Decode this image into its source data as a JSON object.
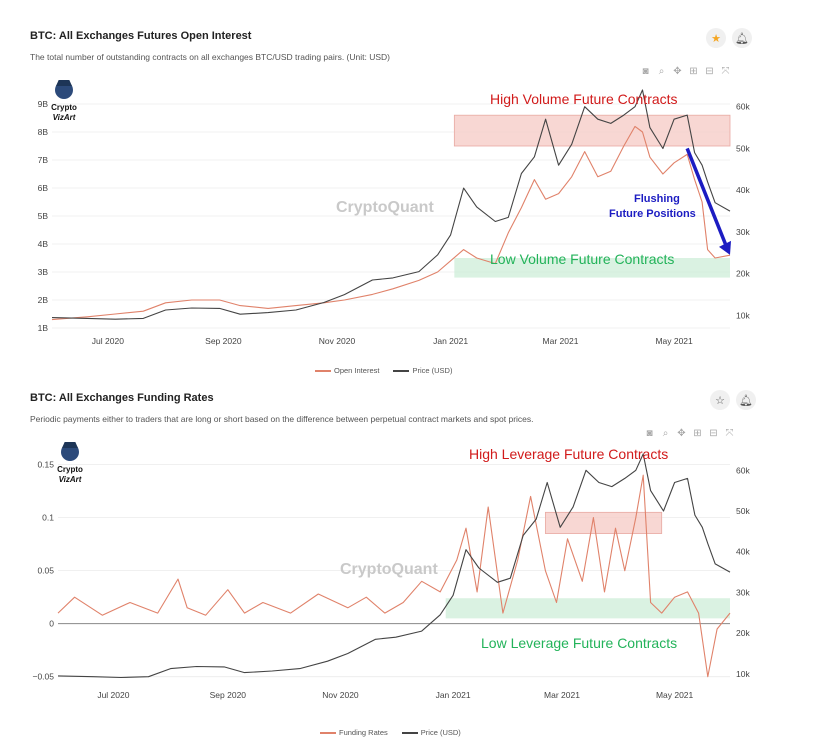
{
  "panel1": {
    "title": "BTC: All Exchanges Futures Open Interest",
    "subtitle": "The total number of outstanding contracts on all exchanges BTC/USD trading pairs. (Unit: USD)",
    "watermark": "CryptoQuant",
    "logo_text": [
      "Crypto",
      "VizArt"
    ],
    "annotations": {
      "high": "High Volume Future Contracts",
      "low": "Low Volume Future Contracts",
      "flush": [
        "Flushing",
        "Future Positions"
      ]
    }
  },
  "panel2": {
    "title": "BTC: All Exchanges Funding Rates",
    "subtitle": "Periodic payments either to traders that are long or short based on the difference between perpetual contract markets and spot prices.",
    "watermark": "CryptoQuant",
    "logo_text": [
      "Crypto",
      "VizArt"
    ],
    "annotations": {
      "high": "High Leverage Future Contracts",
      "low": "Low Leverage Future Contracts"
    }
  },
  "icons": {
    "star": "star-icon",
    "bell": "bell-icon",
    "toolbar": [
      "camera-icon",
      "zoom-icon",
      "pan-icon",
      "zoom-in-icon",
      "zoom-out-icon",
      "autoscale-icon"
    ]
  },
  "colors": {
    "open_interest": "#e0826a",
    "funding_rates": "#e0826a",
    "price": "#444444",
    "high_zone": "#f6c9c4",
    "low_zone": "#cdeed8",
    "high_text": "#d11a1a",
    "low_text": "#23b35a",
    "arrow": "#1c1cc2",
    "star_active": "#f5a623"
  },
  "chart_data": [
    {
      "type": "line",
      "title": "BTC: All Exchanges Futures Open Interest",
      "x_ticks": [
        "Jul 2020",
        "Sep 2020",
        "Nov 2020",
        "Jan 2021",
        "Mar 2021",
        "May 2021"
      ],
      "y_left_ticks": [
        "1B",
        "2B",
        "3B",
        "4B",
        "5B",
        "6B",
        "7B",
        "8B",
        "9B"
      ],
      "y_right_ticks": [
        "10k",
        "20k",
        "30k",
        "40k",
        "50k",
        "60k"
      ],
      "ylim_left": [
        1,
        9.5
      ],
      "ylim_right": [
        7000,
        64000
      ],
      "x_range": [
        "2020-06-01",
        "2021-05-31"
      ],
      "legend_position": "bottom-center",
      "series": [
        {
          "name": "Open Interest",
          "axis": "left",
          "unit": "B USD",
          "x": [
            "2020-06-01",
            "2020-06-20",
            "2020-07-05",
            "2020-07-20",
            "2020-08-01",
            "2020-08-15",
            "2020-08-30",
            "2020-09-10",
            "2020-09-25",
            "2020-10-10",
            "2020-10-25",
            "2020-11-05",
            "2020-11-20",
            "2020-12-01",
            "2020-12-15",
            "2020-12-25",
            "2021-01-01",
            "2021-01-08",
            "2021-01-15",
            "2021-01-25",
            "2021-02-01",
            "2021-02-08",
            "2021-02-15",
            "2021-02-21",
            "2021-02-28",
            "2021-03-07",
            "2021-03-14",
            "2021-03-21",
            "2021-03-28",
            "2021-04-04",
            "2021-04-10",
            "2021-04-14",
            "2021-04-18",
            "2021-04-25",
            "2021-05-01",
            "2021-05-08",
            "2021-05-12",
            "2021-05-16",
            "2021-05-19",
            "2021-05-23",
            "2021-05-31"
          ],
          "values": [
            1.3,
            1.4,
            1.5,
            1.6,
            1.9,
            2.0,
            2.0,
            1.8,
            1.7,
            1.8,
            1.9,
            2.0,
            2.2,
            2.4,
            2.7,
            3.0,
            3.4,
            3.8,
            3.5,
            3.3,
            4.4,
            5.3,
            6.3,
            5.6,
            5.8,
            6.4,
            7.3,
            6.4,
            6.6,
            7.5,
            8.2,
            8.0,
            7.1,
            6.5,
            6.9,
            7.2,
            6.3,
            5.5,
            3.8,
            3.5,
            3.6
          ]
        },
        {
          "name": "Price (USD)",
          "axis": "right",
          "unit": "USD",
          "x": [
            "2020-06-01",
            "2020-06-20",
            "2020-07-05",
            "2020-07-20",
            "2020-08-01",
            "2020-08-15",
            "2020-08-30",
            "2020-09-10",
            "2020-09-25",
            "2020-10-10",
            "2020-10-25",
            "2020-11-05",
            "2020-11-20",
            "2020-12-01",
            "2020-12-15",
            "2020-12-25",
            "2021-01-01",
            "2021-01-08",
            "2021-01-15",
            "2021-01-25",
            "2021-02-01",
            "2021-02-08",
            "2021-02-15",
            "2021-02-21",
            "2021-02-28",
            "2021-03-07",
            "2021-03-14",
            "2021-03-21",
            "2021-03-28",
            "2021-04-04",
            "2021-04-10",
            "2021-04-14",
            "2021-04-18",
            "2021-04-25",
            "2021-05-01",
            "2021-05-08",
            "2021-05-12",
            "2021-05-16",
            "2021-05-19",
            "2021-05-23",
            "2021-05-31"
          ],
          "values": [
            9500,
            9300,
            9100,
            9300,
            11300,
            11800,
            11700,
            10300,
            10700,
            11300,
            13100,
            15000,
            18500,
            19000,
            20500,
            24500,
            29300,
            40500,
            36000,
            32500,
            33500,
            44000,
            48000,
            57000,
            46000,
            51000,
            60000,
            57000,
            56000,
            58000,
            60000,
            64000,
            55000,
            50000,
            57000,
            58000,
            49000,
            46000,
            42000,
            37000,
            35000
          ]
        }
      ]
    },
    {
      "type": "line",
      "title": "BTC: All Exchanges Funding Rates",
      "x_ticks": [
        "Jul 2020",
        "Sep 2020",
        "Nov 2020",
        "Jan 2021",
        "Mar 2021",
        "May 2021"
      ],
      "y_left_ticks": [
        "−0.05",
        "0",
        "0.05",
        "0.1",
        "0.15"
      ],
      "y_right_ticks": [
        "10k",
        "20k",
        "30k",
        "40k",
        "50k",
        "60k"
      ],
      "ylim_left": [
        -0.055,
        0.16
      ],
      "ylim_right": [
        8000,
        64000
      ],
      "x_range": [
        "2020-06-01",
        "2021-05-31"
      ],
      "legend_position": "bottom-center",
      "series": [
        {
          "name": "Funding Rates",
          "axis": "left",
          "unit": "%",
          "x": [
            "2020-06-01",
            "2020-06-10",
            "2020-06-25",
            "2020-07-10",
            "2020-07-25",
            "2020-08-05",
            "2020-08-10",
            "2020-08-20",
            "2020-09-01",
            "2020-09-10",
            "2020-09-20",
            "2020-10-05",
            "2020-10-20",
            "2020-11-05",
            "2020-11-15",
            "2020-11-25",
            "2020-12-05",
            "2020-12-15",
            "2020-12-25",
            "2021-01-03",
            "2021-01-08",
            "2021-01-14",
            "2021-01-20",
            "2021-01-28",
            "2021-02-05",
            "2021-02-12",
            "2021-02-20",
            "2021-02-26",
            "2021-03-04",
            "2021-03-12",
            "2021-03-18",
            "2021-03-24",
            "2021-03-30",
            "2021-04-04",
            "2021-04-10",
            "2021-04-14",
            "2021-04-18",
            "2021-04-24",
            "2021-05-01",
            "2021-05-08",
            "2021-05-14",
            "2021-05-19",
            "2021-05-24",
            "2021-05-31"
          ],
          "values": [
            0.01,
            0.025,
            0.008,
            0.02,
            0.01,
            0.042,
            0.015,
            0.008,
            0.032,
            0.01,
            0.02,
            0.01,
            0.028,
            0.015,
            0.025,
            0.01,
            0.02,
            0.04,
            0.03,
            0.06,
            0.09,
            0.03,
            0.11,
            0.01,
            0.06,
            0.12,
            0.05,
            0.02,
            0.08,
            0.04,
            0.1,
            0.03,
            0.09,
            0.05,
            0.1,
            0.14,
            0.02,
            0.01,
            0.025,
            0.03,
            0.01,
            -0.05,
            -0.005,
            0.01
          ]
        },
        {
          "name": "Price (USD)",
          "axis": "right",
          "unit": "USD",
          "x": [
            "2020-06-01",
            "2020-06-20",
            "2020-07-05",
            "2020-07-20",
            "2020-08-01",
            "2020-08-15",
            "2020-08-30",
            "2020-09-10",
            "2020-09-25",
            "2020-10-10",
            "2020-10-25",
            "2020-11-05",
            "2020-11-20",
            "2020-12-01",
            "2020-12-15",
            "2020-12-25",
            "2021-01-01",
            "2021-01-08",
            "2021-01-15",
            "2021-01-25",
            "2021-02-01",
            "2021-02-08",
            "2021-02-15",
            "2021-02-21",
            "2021-02-28",
            "2021-03-07",
            "2021-03-14",
            "2021-03-21",
            "2021-03-28",
            "2021-04-04",
            "2021-04-10",
            "2021-04-14",
            "2021-04-18",
            "2021-04-25",
            "2021-05-01",
            "2021-05-08",
            "2021-05-12",
            "2021-05-16",
            "2021-05-19",
            "2021-05-23",
            "2021-05-31"
          ],
          "values": [
            9500,
            9300,
            9100,
            9300,
            11300,
            11800,
            11700,
            10300,
            10700,
            11300,
            13100,
            15000,
            18500,
            19000,
            20500,
            24500,
            29300,
            40500,
            36000,
            32500,
            33500,
            44000,
            48000,
            57000,
            46000,
            51000,
            60000,
            57000,
            56000,
            58000,
            60000,
            64000,
            55000,
            50000,
            57000,
            58000,
            49000,
            46000,
            42000,
            37000,
            35000
          ]
        }
      ]
    }
  ]
}
